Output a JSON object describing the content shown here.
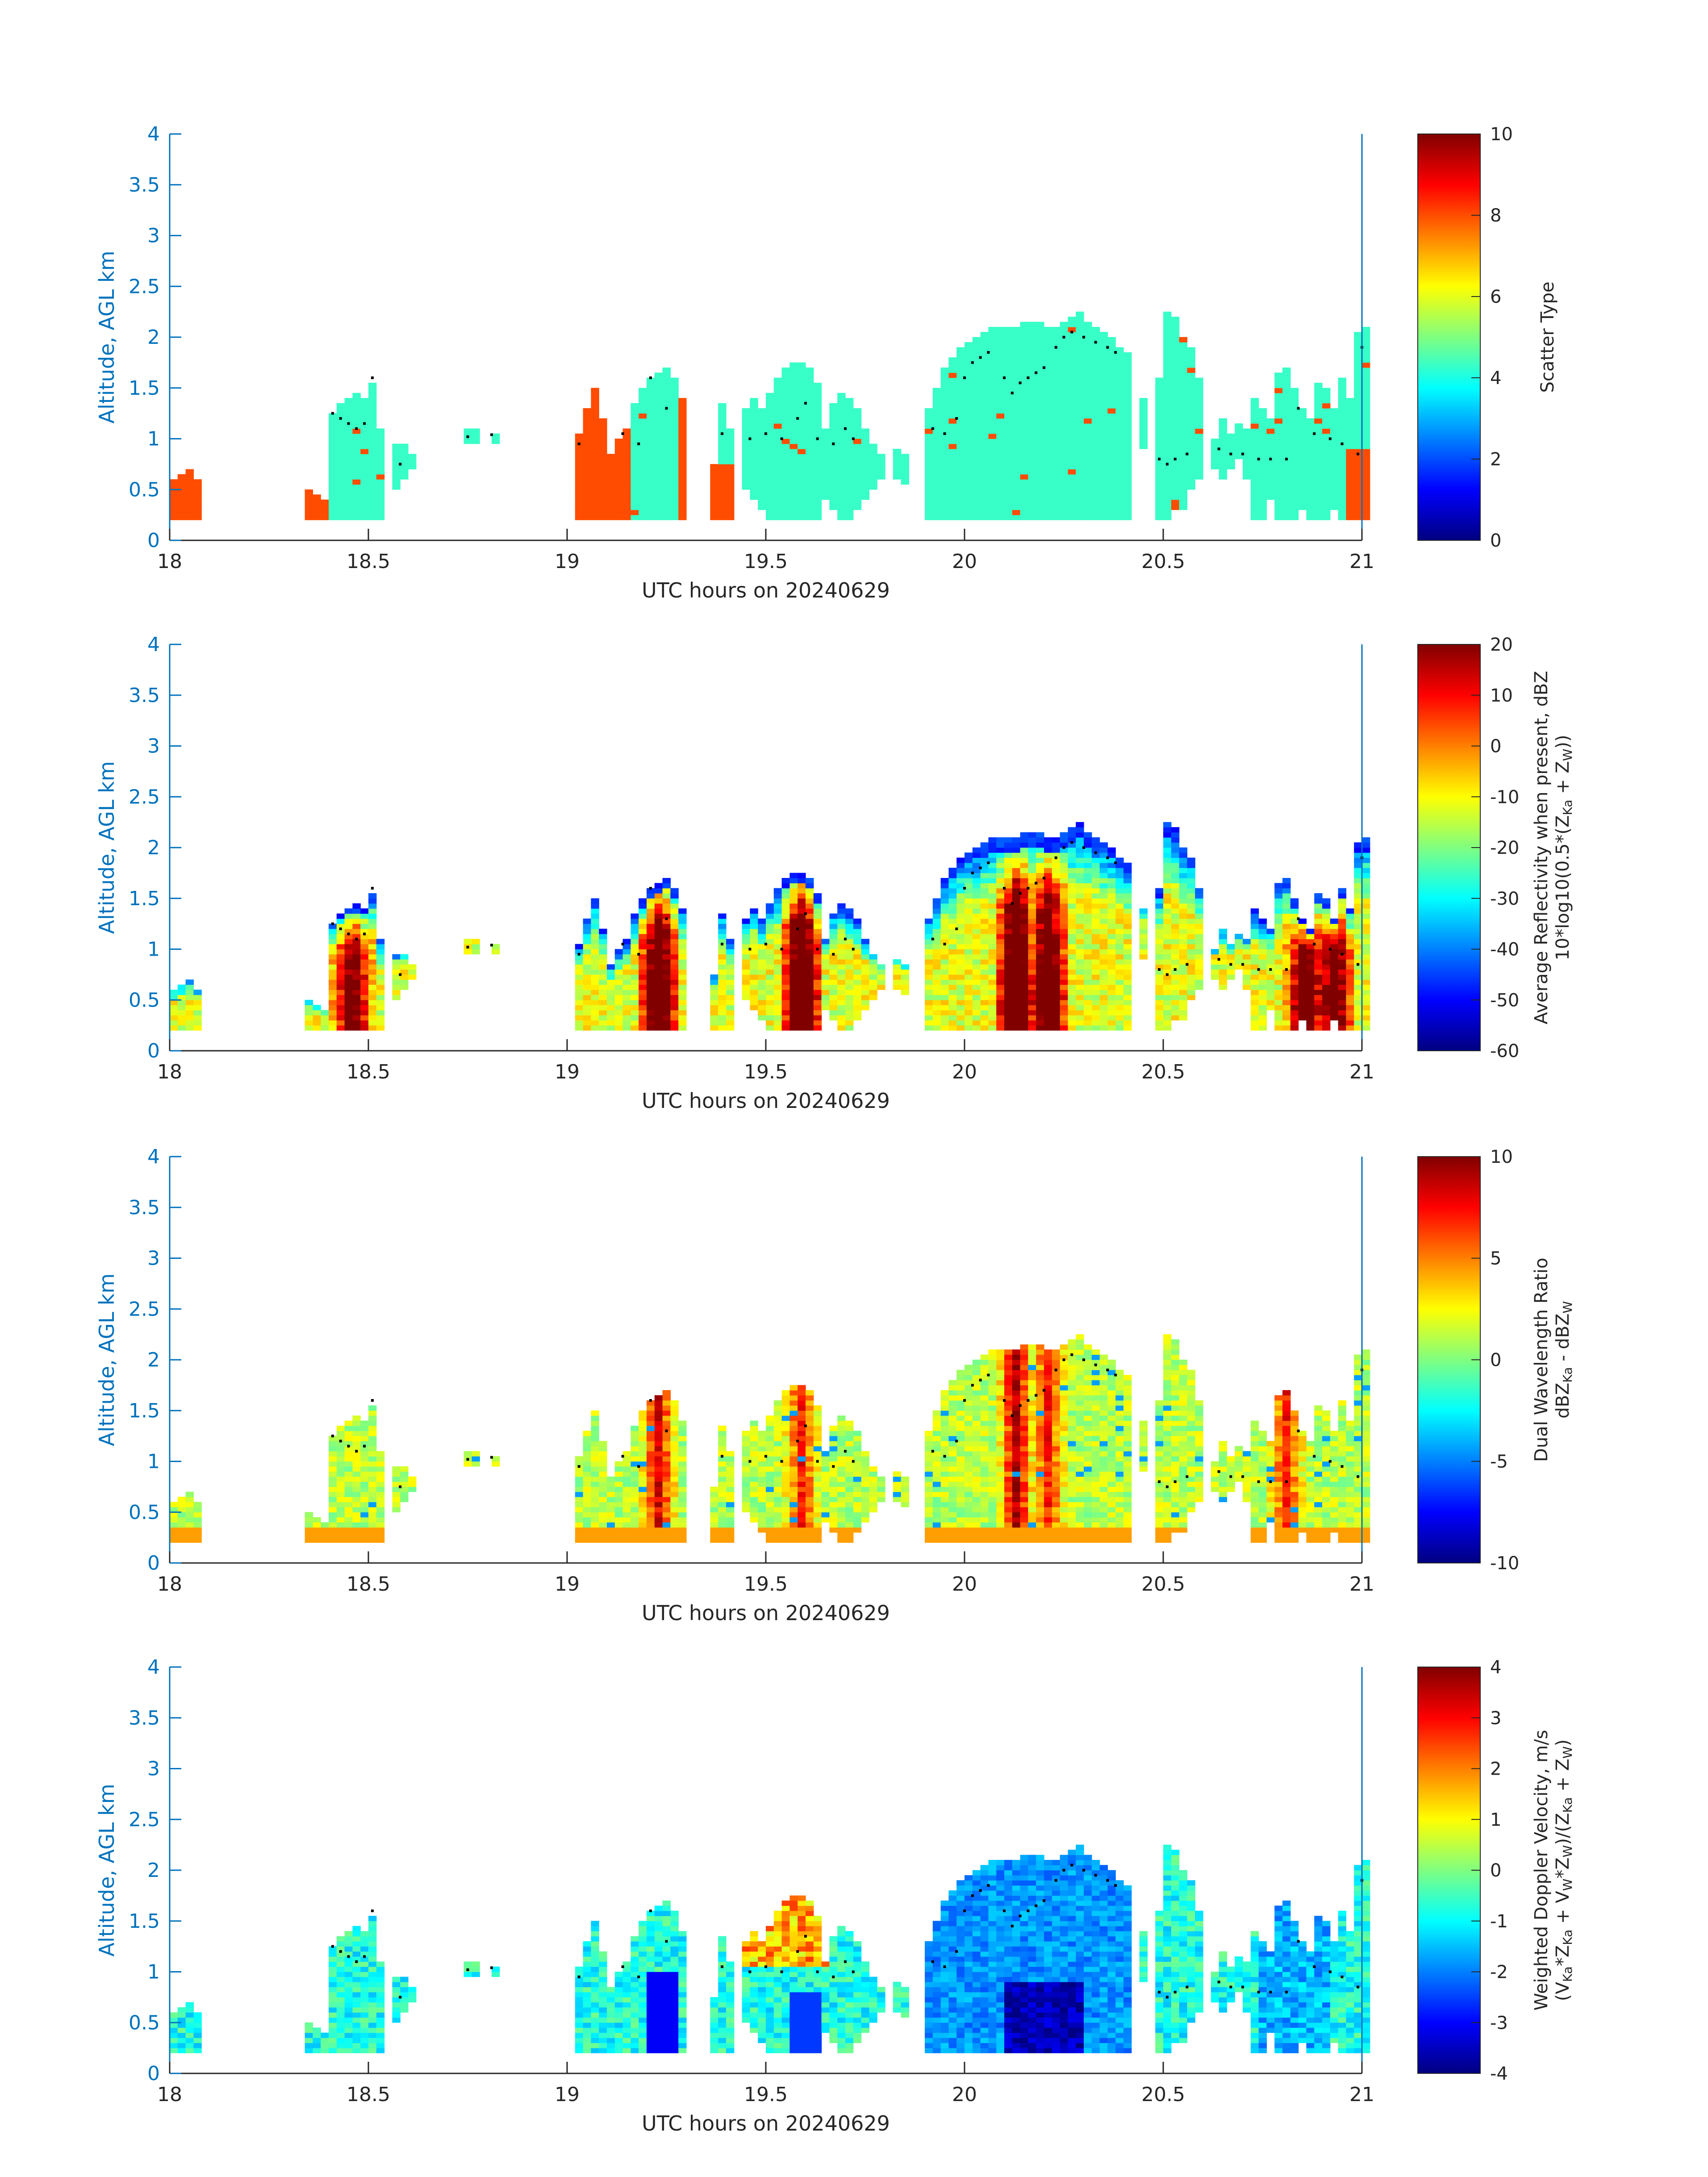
{
  "chart_data": [
    {
      "type": "heatmap",
      "xlabel": "UTC hours on 20240629",
      "ylabel": "Altitude, AGL km",
      "xlim": [
        18,
        21
      ],
      "ylim": [
        0,
        4
      ],
      "xticks": [
        "18",
        "18.5",
        "19",
        "19.5",
        "20",
        "20.5",
        "21"
      ],
      "yticks": [
        "0",
        "0.5",
        "1",
        "1.5",
        "2",
        "2.5",
        "3",
        "3.5",
        "4"
      ],
      "colorbar": {
        "range": [
          0,
          10
        ],
        "ticks": [
          "0",
          "2",
          "4",
          "6",
          "8",
          "10"
        ],
        "label_parts": [
          {
            "t": "Scatter Type"
          }
        ],
        "label_line2_parts": []
      }
    },
    {
      "type": "heatmap",
      "xlabel": "UTC hours on 20240629",
      "ylabel": "Altitude, AGL km",
      "xlim": [
        18,
        21
      ],
      "ylim": [
        0,
        4
      ],
      "xticks": [
        "18",
        "18.5",
        "19",
        "19.5",
        "20",
        "20.5",
        "21"
      ],
      "yticks": [
        "0",
        "0.5",
        "1",
        "1.5",
        "2",
        "2.5",
        "3",
        "3.5",
        "4"
      ],
      "colorbar": {
        "range": [
          -60,
          20
        ],
        "ticks": [
          "-60",
          "-50",
          "-40",
          "-30",
          "-20",
          "-10",
          "0",
          "10",
          "20"
        ],
        "label_parts": [
          {
            "t": "Average Reflectivity when present, dBZ"
          }
        ],
        "label_line2_parts": [
          {
            "t": "10*log10(0.5*(Z"
          },
          {
            "t": "Ka",
            "sub": true
          },
          {
            "t": " + Z"
          },
          {
            "t": "W",
            "sub": true
          },
          {
            "t": "))"
          }
        ]
      }
    },
    {
      "type": "heatmap",
      "xlabel": "UTC hours on 20240629",
      "ylabel": "Altitude, AGL km",
      "xlim": [
        18,
        21
      ],
      "ylim": [
        0,
        4
      ],
      "xticks": [
        "18",
        "18.5",
        "19",
        "19.5",
        "20",
        "20.5",
        "21"
      ],
      "yticks": [
        "0",
        "0.5",
        "1",
        "1.5",
        "2",
        "2.5",
        "3",
        "3.5",
        "4"
      ],
      "colorbar": {
        "range": [
          -10,
          10
        ],
        "ticks": [
          "-10",
          "-5",
          "0",
          "5",
          "10"
        ],
        "label_parts": [
          {
            "t": "Dual Wavelength Ratio"
          }
        ],
        "label_line2_parts": [
          {
            "t": "dBZ"
          },
          {
            "t": "Ka",
            "sub": true
          },
          {
            "t": " - dBZ"
          },
          {
            "t": "W",
            "sub": true
          }
        ]
      }
    },
    {
      "type": "heatmap",
      "xlabel": "UTC hours on 20240629",
      "ylabel": "Altitude, AGL km",
      "xlim": [
        18,
        21
      ],
      "ylim": [
        0,
        4
      ],
      "xticks": [
        "18",
        "18.5",
        "19",
        "19.5",
        "20",
        "20.5",
        "21"
      ],
      "yticks": [
        "0",
        "0.5",
        "1",
        "1.5",
        "2",
        "2.5",
        "3",
        "3.5",
        "4"
      ],
      "colorbar": {
        "range": [
          -4,
          4
        ],
        "ticks": [
          "-4",
          "-3",
          "-2",
          "-1",
          "0",
          "1",
          "2",
          "3",
          "4"
        ],
        "label_parts": [
          {
            "t": "Weighted Doppler Velocity, m/s"
          }
        ],
        "label_line2_parts": [
          {
            "t": "(V"
          },
          {
            "t": "Ka",
            "sub": true
          },
          {
            "t": "*Z"
          },
          {
            "t": "Ka",
            "sub": true
          },
          {
            "t": " + V"
          },
          {
            "t": "W",
            "sub": true
          },
          {
            "t": "*Z"
          },
          {
            "t": "W",
            "sub": true
          },
          {
            "t": ")/(Z"
          },
          {
            "t": "Ka",
            "sub": true
          },
          {
            "t": " + Z"
          },
          {
            "t": "W",
            "sub": true
          },
          {
            "t": ")"
          }
        ]
      }
    }
  ],
  "cloud_columns": [
    [
      18.0,
      0.2,
      0.6
    ],
    [
      18.02,
      0.2,
      0.65
    ],
    [
      18.04,
      0.2,
      0.7
    ],
    [
      18.06,
      0.2,
      0.6
    ],
    [
      18.34,
      0.2,
      0.5
    ],
    [
      18.36,
      0.2,
      0.45
    ],
    [
      18.38,
      0.2,
      0.4
    ],
    [
      18.4,
      0.2,
      1.25
    ],
    [
      18.42,
      0.2,
      1.35
    ],
    [
      18.44,
      0.2,
      1.4
    ],
    [
      18.46,
      0.2,
      1.45
    ],
    [
      18.48,
      0.2,
      1.4
    ],
    [
      18.5,
      0.2,
      1.55
    ],
    [
      18.52,
      0.2,
      1.1
    ],
    [
      18.56,
      0.5,
      0.95
    ],
    [
      18.58,
      0.6,
      0.95
    ],
    [
      18.6,
      0.7,
      0.85
    ],
    [
      18.74,
      0.95,
      1.1
    ],
    [
      18.76,
      0.95,
      1.1
    ],
    [
      18.81,
      0.95,
      1.05
    ],
    [
      19.02,
      0.2,
      1.05
    ],
    [
      19.04,
      0.2,
      1.3
    ],
    [
      19.06,
      0.2,
      1.5
    ],
    [
      19.08,
      0.2,
      1.2
    ],
    [
      19.1,
      0.2,
      0.85
    ],
    [
      19.12,
      0.2,
      1.0
    ],
    [
      19.14,
      0.2,
      1.1
    ],
    [
      19.16,
      0.2,
      1.35
    ],
    [
      19.18,
      0.2,
      1.5
    ],
    [
      19.2,
      0.2,
      1.6
    ],
    [
      19.22,
      0.2,
      1.65
    ],
    [
      19.24,
      0.2,
      1.7
    ],
    [
      19.26,
      0.2,
      1.6
    ],
    [
      19.28,
      0.2,
      1.4
    ],
    [
      19.36,
      0.2,
      0.75
    ],
    [
      19.38,
      0.2,
      1.35
    ],
    [
      19.4,
      0.2,
      1.1
    ],
    [
      19.44,
      0.5,
      1.3
    ],
    [
      19.46,
      0.4,
      1.4
    ],
    [
      19.48,
      0.3,
      1.3
    ],
    [
      19.5,
      0.2,
      1.45
    ],
    [
      19.52,
      0.2,
      1.6
    ],
    [
      19.54,
      0.2,
      1.7
    ],
    [
      19.56,
      0.2,
      1.75
    ],
    [
      19.58,
      0.2,
      1.75
    ],
    [
      19.6,
      0.2,
      1.7
    ],
    [
      19.62,
      0.2,
      1.55
    ],
    [
      19.64,
      0.4,
      1.1
    ],
    [
      19.66,
      0.3,
      1.35
    ],
    [
      19.68,
      0.2,
      1.45
    ],
    [
      19.7,
      0.2,
      1.4
    ],
    [
      19.72,
      0.3,
      1.3
    ],
    [
      19.74,
      0.4,
      1.1
    ],
    [
      19.76,
      0.5,
      0.95
    ],
    [
      19.78,
      0.6,
      0.85
    ],
    [
      19.82,
      0.6,
      0.9
    ],
    [
      19.84,
      0.55,
      0.85
    ],
    [
      19.9,
      0.2,
      1.3
    ],
    [
      19.92,
      0.2,
      1.5
    ],
    [
      19.94,
      0.2,
      1.7
    ],
    [
      19.96,
      0.2,
      1.8
    ],
    [
      19.98,
      0.2,
      1.9
    ],
    [
      20.0,
      0.2,
      1.95
    ],
    [
      20.02,
      0.2,
      2.0
    ],
    [
      20.04,
      0.2,
      2.05
    ],
    [
      20.06,
      0.2,
      2.1
    ],
    [
      20.08,
      0.2,
      2.1
    ],
    [
      20.1,
      0.2,
      2.1
    ],
    [
      20.12,
      0.2,
      2.1
    ],
    [
      20.14,
      0.2,
      2.15
    ],
    [
      20.16,
      0.2,
      2.15
    ],
    [
      20.18,
      0.2,
      2.15
    ],
    [
      20.2,
      0.2,
      2.1
    ],
    [
      20.22,
      0.2,
      2.1
    ],
    [
      20.24,
      0.2,
      2.15
    ],
    [
      20.26,
      0.2,
      2.2
    ],
    [
      20.28,
      0.2,
      2.25
    ],
    [
      20.3,
      0.2,
      2.15
    ],
    [
      20.32,
      0.2,
      2.1
    ],
    [
      20.34,
      0.2,
      2.05
    ],
    [
      20.36,
      0.2,
      2.0
    ],
    [
      20.38,
      0.2,
      1.9
    ],
    [
      20.4,
      0.2,
      1.85
    ],
    [
      20.44,
      0.9,
      1.4
    ],
    [
      20.48,
      0.2,
      1.6
    ],
    [
      20.5,
      0.2,
      2.25
    ],
    [
      20.52,
      0.3,
      2.2
    ],
    [
      20.54,
      0.3,
      2.0
    ],
    [
      20.56,
      0.5,
      1.9
    ],
    [
      20.58,
      0.6,
      1.6
    ],
    [
      20.62,
      0.7,
      1.0
    ],
    [
      20.64,
      0.6,
      1.2
    ],
    [
      20.66,
      0.7,
      1.05
    ],
    [
      20.68,
      0.8,
      1.15
    ],
    [
      20.7,
      0.6,
      1.1
    ],
    [
      20.72,
      0.2,
      1.4
    ],
    [
      20.74,
      0.2,
      1.3
    ],
    [
      20.76,
      0.4,
      1.2
    ],
    [
      20.78,
      0.2,
      1.65
    ],
    [
      20.8,
      0.2,
      1.7
    ],
    [
      20.82,
      0.2,
      1.5
    ],
    [
      20.84,
      0.3,
      1.3
    ],
    [
      20.86,
      0.2,
      1.2
    ],
    [
      20.88,
      0.2,
      1.55
    ],
    [
      20.9,
      0.2,
      1.5
    ],
    [
      20.92,
      0.3,
      1.3
    ],
    [
      20.94,
      0.2,
      1.6
    ],
    [
      20.96,
      0.2,
      1.4
    ],
    [
      20.98,
      0.2,
      2.05
    ],
    [
      21.0,
      0.2,
      2.1
    ]
  ],
  "cloud_top_markers": [
    [
      18.41,
      1.25
    ],
    [
      18.43,
      1.2
    ],
    [
      18.45,
      1.15
    ],
    [
      18.47,
      1.1
    ],
    [
      18.49,
      1.15
    ],
    [
      18.51,
      1.6
    ],
    [
      18.58,
      0.75
    ],
    [
      18.75,
      1.02
    ],
    [
      18.81,
      1.04
    ],
    [
      19.03,
      0.95
    ],
    [
      19.14,
      1.05
    ],
    [
      19.18,
      0.95
    ],
    [
      19.21,
      1.6
    ],
    [
      19.25,
      1.3
    ],
    [
      19.39,
      1.05
    ],
    [
      19.46,
      1.0
    ],
    [
      19.5,
      1.05
    ],
    [
      19.54,
      1.0
    ],
    [
      19.58,
      1.2
    ],
    [
      19.6,
      1.35
    ],
    [
      19.63,
      1.0
    ],
    [
      19.67,
      0.95
    ],
    [
      19.7,
      1.1
    ],
    [
      19.72,
      1.0
    ],
    [
      19.92,
      1.1
    ],
    [
      19.95,
      1.05
    ],
    [
      19.98,
      1.2
    ],
    [
      20.0,
      1.6
    ],
    [
      20.02,
      1.75
    ],
    [
      20.04,
      1.8
    ],
    [
      20.06,
      1.85
    ],
    [
      20.1,
      1.6
    ],
    [
      20.12,
      1.45
    ],
    [
      20.14,
      1.55
    ],
    [
      20.16,
      1.6
    ],
    [
      20.18,
      1.65
    ],
    [
      20.2,
      1.7
    ],
    [
      20.23,
      1.9
    ],
    [
      20.25,
      2.0
    ],
    [
      20.27,
      2.05
    ],
    [
      20.3,
      2.0
    ],
    [
      20.33,
      1.95
    ],
    [
      20.36,
      1.9
    ],
    [
      20.38,
      1.85
    ],
    [
      20.49,
      0.8
    ],
    [
      20.51,
      0.75
    ],
    [
      20.53,
      0.8
    ],
    [
      20.56,
      0.85
    ],
    [
      20.64,
      0.9
    ],
    [
      20.67,
      0.85
    ],
    [
      20.7,
      0.85
    ],
    [
      20.74,
      0.8
    ],
    [
      20.77,
      0.8
    ],
    [
      20.81,
      0.8
    ],
    [
      20.84,
      1.3
    ],
    [
      20.88,
      1.05
    ],
    [
      20.92,
      1.0
    ],
    [
      20.95,
      0.95
    ],
    [
      20.99,
      0.85
    ],
    [
      21.0,
      1.9
    ]
  ]
}
